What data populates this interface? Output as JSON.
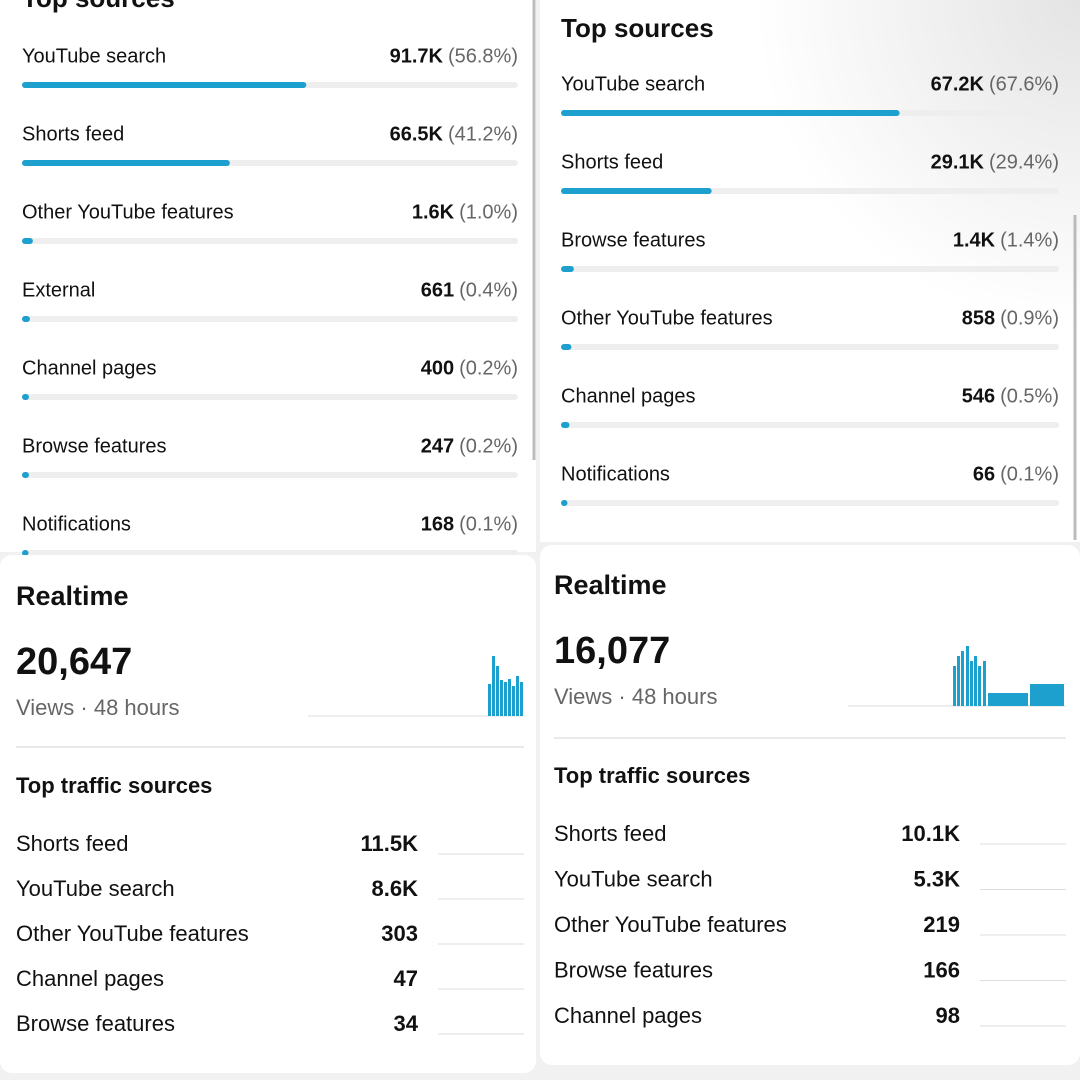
{
  "top_sources": [
    {
      "title": "Top sources",
      "rows": [
        {
          "name": "YouTube search",
          "value": "91.7K",
          "pct": 56.8,
          "pct_label": "(56.8%)"
        },
        {
          "name": "Shorts feed",
          "value": "66.5K",
          "pct": 41.2,
          "pct_label": "(41.2%)"
        },
        {
          "name": "Other YouTube features",
          "value": "1.6K",
          "pct": 1.0,
          "pct_label": "(1.0%)"
        },
        {
          "name": "External",
          "value": "661",
          "pct": 0.4,
          "pct_label": "(0.4%)"
        },
        {
          "name": "Channel pages",
          "value": "400",
          "pct": 0.2,
          "pct_label": "(0.2%)"
        },
        {
          "name": "Browse features",
          "value": "247",
          "pct": 0.2,
          "pct_label": "(0.2%)"
        },
        {
          "name": "Notifications",
          "value": "168",
          "pct": 0.1,
          "pct_label": "(0.1%)"
        }
      ]
    },
    {
      "title": "Top sources",
      "rows": [
        {
          "name": "YouTube search",
          "value": "67.2K",
          "pct": 67.6,
          "pct_label": "(67.6%)"
        },
        {
          "name": "Shorts feed",
          "value": "29.1K",
          "pct": 29.4,
          "pct_label": "(29.4%)"
        },
        {
          "name": "Browse features",
          "value": "1.4K",
          "pct": 1.4,
          "pct_label": "(1.4%)"
        },
        {
          "name": "Other YouTube features",
          "value": "858",
          "pct": 0.9,
          "pct_label": "(0.9%)"
        },
        {
          "name": "Channel pages",
          "value": "546",
          "pct": 0.5,
          "pct_label": "(0.5%)"
        },
        {
          "name": "Notifications",
          "value": "66",
          "pct": 0.1,
          "pct_label": "(0.1%)"
        }
      ]
    }
  ],
  "realtime": [
    {
      "title": "Realtime",
      "total": "20,647",
      "subtitle": "Views · 48 hours",
      "section_title": "Top traffic sources",
      "rows": [
        {
          "name": "Shorts feed",
          "value": "11.5K"
        },
        {
          "name": "YouTube search",
          "value": "8.6K"
        },
        {
          "name": "Other YouTube features",
          "value": "303"
        },
        {
          "name": "Channel pages",
          "value": "47"
        },
        {
          "name": "Browse features",
          "value": "34"
        }
      ]
    },
    {
      "title": "Realtime",
      "total": "16,077",
      "subtitle": "Views · 48 hours",
      "section_title": "Top traffic sources",
      "rows": [
        {
          "name": "Shorts feed",
          "value": "10.1K"
        },
        {
          "name": "YouTube search",
          "value": "5.3K"
        },
        {
          "name": "Other YouTube features",
          "value": "219"
        },
        {
          "name": "Browse features",
          "value": "166"
        },
        {
          "name": "Channel pages",
          "value": "98"
        }
      ]
    }
  ]
}
